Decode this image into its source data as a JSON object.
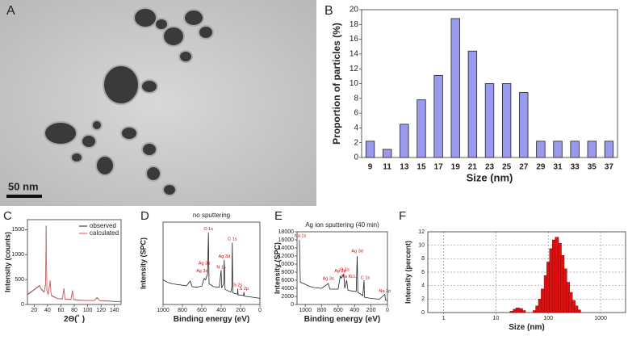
{
  "panel_a": {
    "label": "A",
    "scale_bar": "50 nm"
  },
  "chart_data": [
    {
      "type": "bar",
      "panel": "B",
      "x_label": "Size (nm)",
      "y_label": "Proportion of particles (%)",
      "categories": [
        "9",
        "11",
        "13",
        "15",
        "17",
        "19",
        "21",
        "23",
        "25",
        "27",
        "29",
        "31",
        "33",
        "35",
        "37"
      ],
      "values": [
        2.2,
        1.1,
        4.5,
        7.8,
        11.1,
        18.8,
        14.4,
        10,
        10,
        8.8,
        2.2,
        2.2,
        2.2,
        2.2,
        2.2
      ],
      "color": "#9999ee",
      "ylim": [
        0,
        20
      ],
      "yticks": [
        0,
        2,
        4,
        6,
        8,
        10,
        12,
        14,
        16,
        18,
        20
      ]
    },
    {
      "type": "line",
      "panel": "C",
      "x_label": "2Θ(˚ )",
      "y_label": "Intensity (counts)",
      "legend": "upper right",
      "x": [
        10,
        20,
        25,
        28,
        30,
        35,
        37,
        38,
        39,
        41,
        44,
        45,
        46,
        55,
        62,
        64.5,
        66,
        75,
        77.4,
        79,
        85,
        98,
        110,
        114,
        118,
        130,
        140,
        150
      ],
      "series": [
        {
          "name": "observed",
          "color": "#444444",
          "values": [
            200,
            300,
            350,
            380,
            320,
            250,
            400,
            1580,
            300,
            200,
            480,
            250,
            180,
            120,
            110,
            320,
            110,
            100,
            280,
            100,
            90,
            80,
            80,
            140,
            80,
            70,
            60,
            60
          ]
        },
        {
          "name": "calculated",
          "color": "#e07070",
          "values": [
            190,
            290,
            340,
            370,
            310,
            240,
            380,
            1540,
            290,
            190,
            460,
            240,
            170,
            115,
            105,
            300,
            105,
            95,
            260,
            95,
            85,
            75,
            75,
            130,
            75,
            65,
            55,
            55
          ]
        }
      ],
      "xlim": [
        10,
        150
      ],
      "xticks": [
        20,
        40,
        60,
        80,
        100,
        120,
        140
      ],
      "ylim": [
        0,
        1700
      ],
      "yticks": [
        0,
        500,
        1000,
        1500
      ]
    },
    {
      "type": "line",
      "panel": "D",
      "title": "no sputtering",
      "x_label": "Binding energy (eV)",
      "y_label": "Intensity (SPC)",
      "x": [
        1000,
        950,
        900,
        850,
        800,
        760,
        720,
        700,
        650,
        600,
        575,
        560,
        540,
        532,
        525,
        480,
        420,
        400,
        395,
        375,
        368,
        360,
        300,
        290,
        285,
        280,
        230,
        228,
        225,
        170,
        164,
        160,
        100,
        50,
        0
      ],
      "series": [
        {
          "name": null,
          "color": "#222222",
          "values": [
            3600,
            3200,
            3000,
            2900,
            2800,
            2700,
            3400,
            2600,
            2500,
            2700,
            3800,
            3600,
            4500,
            10500,
            3000,
            2600,
            2500,
            5000,
            2400,
            3000,
            6500,
            2200,
            1800,
            2500,
            9000,
            1700,
            1500,
            2300,
            1400,
            1300,
            1800,
            1200,
            1100,
            1000,
            900
          ]
        }
      ],
      "annotations": [
        {
          "text": "O 1s",
          "x": 532,
          "y": 11000
        },
        {
          "text": "C 1s",
          "x": 285,
          "y": 9500
        },
        {
          "text": "Ag 3d",
          "x": 368,
          "y": 7000
        },
        {
          "text": "N 1s",
          "x": 400,
          "y": 5400
        },
        {
          "text": "Ag 3p",
          "x": 575,
          "y": 6000
        },
        {
          "text": "Ag 3s",
          "x": 600,
          "y": 4900
        },
        {
          "text": "S 2s",
          "x": 228,
          "y": 2800
        },
        {
          "text": "S 2p",
          "x": 164,
          "y": 2300
        }
      ],
      "annotation_color": "#cc0000",
      "xlim": [
        1000,
        0
      ],
      "xticks": [
        1000,
        800,
        600,
        400,
        200,
        0
      ],
      "ylim": [
        0,
        12000
      ]
    },
    {
      "type": "line",
      "panel": "E",
      "title": "Ag ion sputtering (40 min)",
      "x_label": "Binding energy (eV)",
      "y_label": "Intensity (SPC)",
      "x": [
        1072,
        1060,
        1000,
        950,
        900,
        800,
        720,
        700,
        600,
        575,
        560,
        532,
        520,
        497,
        480,
        380,
        368,
        360,
        300,
        285,
        280,
        200,
        100,
        31,
        25,
        0
      ],
      "series": [
        {
          "name": null,
          "color": "#222222",
          "values": [
            16000,
            5500,
            5000,
            4500,
            4200,
            4000,
            5200,
            3800,
            3800,
            7000,
            6500,
            7500,
            4000,
            6000,
            3500,
            3200,
            12000,
            3000,
            2200,
            6000,
            1800,
            1500,
            1300,
            2500,
            1100,
            1000
          ]
        }
      ],
      "annotations": [
        {
          "text": "Na 1s",
          "x": 1060,
          "y": 17000
        },
        {
          "text": "Ag 3s",
          "x": 720,
          "y": 6400
        },
        {
          "text": "Ag 3p",
          "x": 575,
          "y": 8300
        },
        {
          "text": "O 1s",
          "x": 520,
          "y": 8600
        },
        {
          "text": "Ag 3d",
          "x": 368,
          "y": 13200
        },
        {
          "text": "Na KLL",
          "x": 470,
          "y": 6900
        },
        {
          "text": "C 1s",
          "x": 270,
          "y": 6600
        },
        {
          "text": "Na 2p",
          "x": 31,
          "y": 3300
        }
      ],
      "annotation_color": "#cc0000",
      "xlim": [
        1100,
        0
      ],
      "xticks": [
        1000,
        800,
        600,
        400,
        200,
        0
      ],
      "ylim": [
        0,
        18000
      ],
      "yticks": [
        0,
        2000,
        4000,
        6000,
        8000,
        10000,
        12000,
        14000,
        16000,
        18000
      ]
    },
    {
      "type": "bar",
      "panel": "F",
      "x_label": "Size (nm)",
      "y_label": "Intensity (percent)",
      "log_x": true,
      "grid": true,
      "x": [
        20,
        23,
        26,
        30,
        34,
        55,
        62,
        70,
        79,
        90,
        101,
        114,
        129,
        146,
        165,
        186,
        210,
        237,
        268,
        303,
        342,
        386
      ],
      "values": [
        0.2,
        0.5,
        0.7,
        0.6,
        0.3,
        0.3,
        1,
        2,
        3.5,
        5.5,
        7.5,
        9.5,
        10.8,
        11.2,
        10.3,
        8.5,
        6.5,
        4.5,
        3,
        1.8,
        1,
        0.4
      ],
      "color": "#dd1111",
      "xlim": [
        0.5,
        3000
      ],
      "xticks": [
        1,
        10,
        100,
        1000
      ],
      "ylim": [
        0,
        12
      ],
      "yticks": [
        0,
        2,
        4,
        6,
        8,
        10,
        12
      ]
    }
  ]
}
